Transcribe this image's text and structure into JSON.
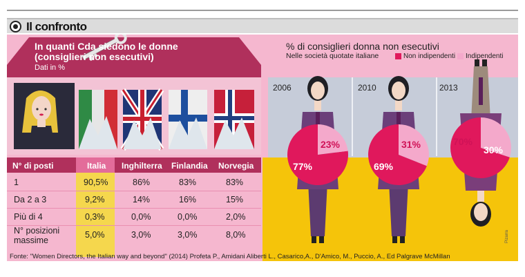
{
  "header": {
    "title": "Il confronto",
    "icon": "circle-target-icon"
  },
  "left": {
    "title_line1": "In quanti Cda siedono le donne",
    "title_line2": "(consiglieri non esecutivi)",
    "subtitle": "Dati in %",
    "table": {
      "row_header": "N° di posti",
      "columns": [
        "Italia",
        "Inghilterra",
        "Finlandia",
        "Norvegia"
      ],
      "rows": [
        {
          "label": "1",
          "values": [
            "90,5%",
            "86%",
            "83%",
            "83%"
          ]
        },
        {
          "label": "Da 2 a 3",
          "values": [
            "9,2%",
            "14%",
            "16%",
            "15%"
          ]
        },
        {
          "label": "Più di 4",
          "values": [
            "0,3%",
            "0,0%",
            "0,0%",
            "2,0%"
          ]
        },
        {
          "label_line1": "N° posizioni",
          "label_line2": "massime",
          "values": [
            "5,0%",
            "3,0%",
            "3,0%",
            "8,0%"
          ]
        }
      ]
    }
  },
  "right": {
    "title": "% di consiglieri donna non esecutivi",
    "subtitle": "Nelle società quotate italiane",
    "legend": [
      {
        "label": "Non indipendenti",
        "color": "#e0185c"
      },
      {
        "label": "Indipendenti",
        "color": "#f4a9cb"
      }
    ]
  },
  "chart_data": {
    "type": "pie",
    "title": "% di consiglieri donna non esecutivi",
    "subtitle": "Nelle società quotate italiane",
    "series_names": [
      "Non indipendenti",
      "Indipendenti"
    ],
    "colors": [
      "#e0185c",
      "#f4a9cb"
    ],
    "pies": [
      {
        "year": "2006",
        "values": [
          77,
          23
        ],
        "labels": [
          "77%",
          "23%"
        ]
      },
      {
        "year": "2010",
        "values": [
          69,
          31
        ],
        "labels": [
          "69%",
          "31%"
        ]
      },
      {
        "year": "2013",
        "values": [
          70,
          30
        ],
        "labels": [
          "70%",
          "30%"
        ]
      }
    ]
  },
  "source": "Fonte: \"Women Directors, the Italian way and beyond\" (2014) Profeta P., Amidani Aliberti  L., Casarico,A., D'Amico, M., Puccio, A., Ed Palgrave McMillan",
  "credit": "Pizarra"
}
